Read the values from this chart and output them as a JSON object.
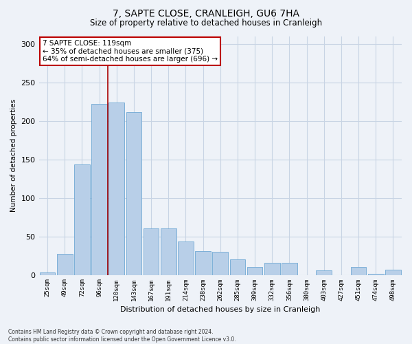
{
  "title": "7, SAPTE CLOSE, CRANLEIGH, GU6 7HA",
  "subtitle": "Size of property relative to detached houses in Cranleigh",
  "xlabel": "Distribution of detached houses by size in Cranleigh",
  "ylabel": "Number of detached properties",
  "categories": [
    "25sqm",
    "49sqm",
    "72sqm",
    "96sqm",
    "120sqm",
    "143sqm",
    "167sqm",
    "191sqm",
    "214sqm",
    "238sqm",
    "262sqm",
    "285sqm",
    "309sqm",
    "332sqm",
    "356sqm",
    "380sqm",
    "403sqm",
    "427sqm",
    "451sqm",
    "474sqm",
    "498sqm"
  ],
  "values": [
    3,
    27,
    143,
    222,
    224,
    211,
    60,
    60,
    43,
    31,
    30,
    20,
    10,
    16,
    16,
    0,
    6,
    0,
    10,
    1,
    7
  ],
  "bar_color": "#b8cfe8",
  "bar_edge_color": "#6fa8d4",
  "vline_x": 3.5,
  "vline_color": "#aa0000",
  "annotation_title": "7 SAPTE CLOSE: 119sqm",
  "annotation_line1": "← 35% of detached houses are smaller (375)",
  "annotation_line2": "64% of semi-detached houses are larger (696) →",
  "annotation_box_color": "#ffffff",
  "annotation_box_edge": "#bb0000",
  "ylim": [
    0,
    310
  ],
  "yticks": [
    0,
    50,
    100,
    150,
    200,
    250,
    300
  ],
  "grid_color": "#c8d4e4",
  "bg_color": "#eef2f8",
  "title_fontsize": 10,
  "subtitle_fontsize": 8.5,
  "footnote1": "Contains HM Land Registry data © Crown copyright and database right 2024.",
  "footnote2": "Contains public sector information licensed under the Open Government Licence v3.0."
}
